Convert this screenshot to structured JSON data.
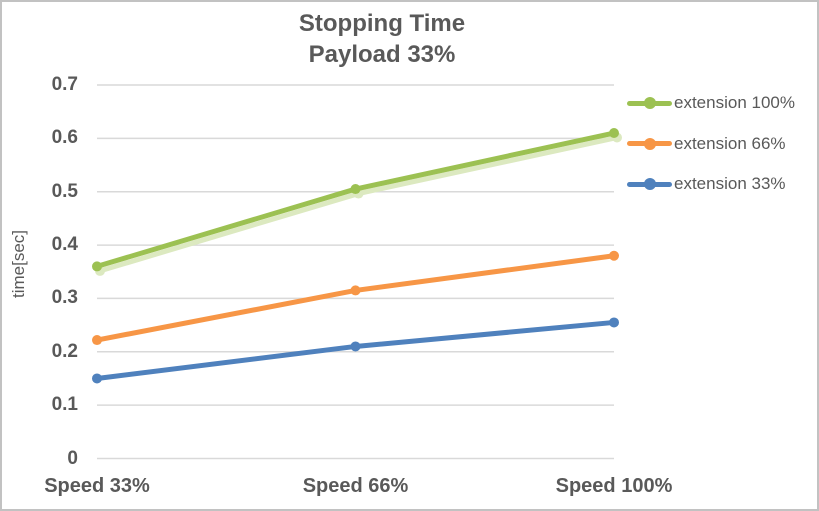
{
  "chart_data": {
    "type": "line",
    "title": "Stopping Time",
    "subtitle": "Payload 33%",
    "ylabel": "time[sec]",
    "categories": [
      "Speed 33%",
      "Speed 66%",
      "Speed 100%"
    ],
    "series": [
      {
        "name": "extension 100%",
        "color": "#9CC152",
        "shadow_color": "#DCE9C0",
        "values": [
          0.36,
          0.505,
          0.61
        ]
      },
      {
        "name": "extension 66%",
        "color": "#F79646",
        "values": [
          0.222,
          0.315,
          0.38
        ]
      },
      {
        "name": "extension 33%",
        "color": "#4F81BD",
        "values": [
          0.15,
          0.21,
          0.255
        ]
      }
    ],
    "ylim": [
      0,
      0.7
    ],
    "yticks": [
      0,
      0.1,
      0.2,
      0.3,
      0.4,
      0.5,
      0.6,
      0.7
    ],
    "ytick_labels": [
      "0",
      "0.1",
      "0.2",
      "0.3",
      "0.4",
      "0.5",
      "0.6",
      "0.7"
    ],
    "grid": true,
    "gridline_color": "#D9D9D9",
    "text_color": "#595959",
    "legend_position": "right"
  }
}
